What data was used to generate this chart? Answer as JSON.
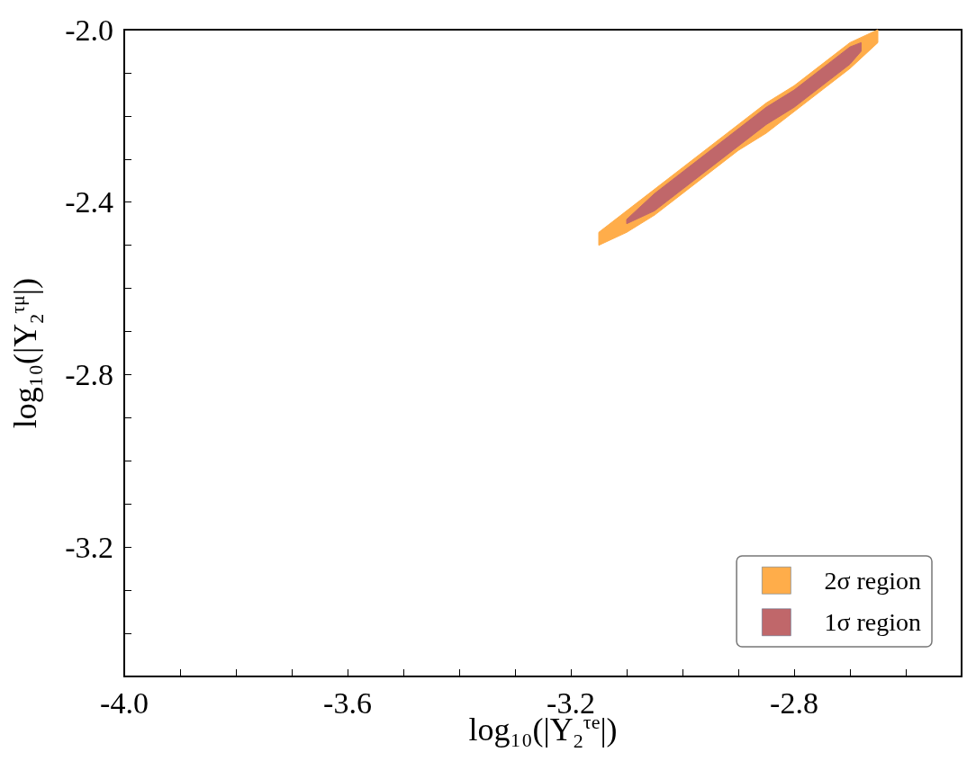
{
  "chart_data": {
    "type": "area",
    "xlabel": "log₁₀(|Y$_{2}$$^{τe}$|)",
    "ylabel": "log₁₀(|Y$_{2}$$^{τμ}$|)",
    "xlim": [
      -4.0,
      -2.5
    ],
    "ylim": [
      -3.5,
      -2.0
    ],
    "xticks": [
      {
        "value": -4.0,
        "label": "-4.0"
      },
      {
        "value": -3.9,
        "label": null
      },
      {
        "value": -3.8,
        "label": null
      },
      {
        "value": -3.7,
        "label": null
      },
      {
        "value": -3.6,
        "label": "-3.6"
      },
      {
        "value": -3.5,
        "label": null
      },
      {
        "value": -3.4,
        "label": null
      },
      {
        "value": -3.3,
        "label": null
      },
      {
        "value": -3.2,
        "label": "-3.2"
      },
      {
        "value": -3.1,
        "label": null
      },
      {
        "value": -3.0,
        "label": null
      },
      {
        "value": -2.9,
        "label": null
      },
      {
        "value": -2.8,
        "label": "-2.8"
      },
      {
        "value": -2.7,
        "label": null
      },
      {
        "value": -2.6,
        "label": null
      }
    ],
    "yticks": [
      {
        "value": -3.4,
        "label": null
      },
      {
        "value": -3.3,
        "label": null
      },
      {
        "value": -3.2,
        "label": "-3.2"
      },
      {
        "value": -3.1,
        "label": null
      },
      {
        "value": -3.0,
        "label": null
      },
      {
        "value": -2.9,
        "label": null
      },
      {
        "value": -2.8,
        "label": "-2.8"
      },
      {
        "value": -2.7,
        "label": null
      },
      {
        "value": -2.6,
        "label": null
      },
      {
        "value": -2.5,
        "label": null
      },
      {
        "value": -2.4,
        "label": "-2.4"
      },
      {
        "value": -2.3,
        "label": null
      },
      {
        "value": -2.2,
        "label": null
      },
      {
        "value": -2.1,
        "label": null
      },
      {
        "value": -2.0,
        "label": "-2.0"
      }
    ],
    "grid": false,
    "legend": "bottom right",
    "series": [
      {
        "name": "2σ region",
        "color": "#ffad4a",
        "x": [
          -3.15,
          -3.1,
          -3.05,
          -3.0,
          -2.95,
          -2.9,
          -2.85,
          -2.8,
          -2.75,
          -2.7,
          -2.65,
          -2.65,
          -2.7,
          -2.75,
          -2.8,
          -2.85,
          -2.9,
          -2.95,
          -3.0,
          -3.05,
          -3.1,
          -3.15
        ],
        "values": [
          -2.5,
          -2.47,
          -2.43,
          -2.38,
          -2.33,
          -2.28,
          -2.24,
          -2.19,
          -2.14,
          -2.09,
          -2.03,
          -2.0,
          -2.03,
          -2.08,
          -2.13,
          -2.17,
          -2.22,
          -2.27,
          -2.32,
          -2.37,
          -2.42,
          -2.47
        ]
      },
      {
        "name": "1σ region",
        "color": "#c0676a",
        "x": [
          -3.1,
          -3.05,
          -3.0,
          -2.95,
          -2.9,
          -2.85,
          -2.8,
          -2.75,
          -2.7,
          -2.68,
          -2.68,
          -2.7,
          -2.75,
          -2.8,
          -2.85,
          -2.9,
          -2.95,
          -3.0,
          -3.05,
          -3.1
        ],
        "values": [
          -2.45,
          -2.42,
          -2.37,
          -2.32,
          -2.27,
          -2.22,
          -2.18,
          -2.13,
          -2.08,
          -2.05,
          -2.03,
          -2.04,
          -2.09,
          -2.14,
          -2.18,
          -2.23,
          -2.28,
          -2.33,
          -2.38,
          -2.44
        ]
      }
    ]
  }
}
